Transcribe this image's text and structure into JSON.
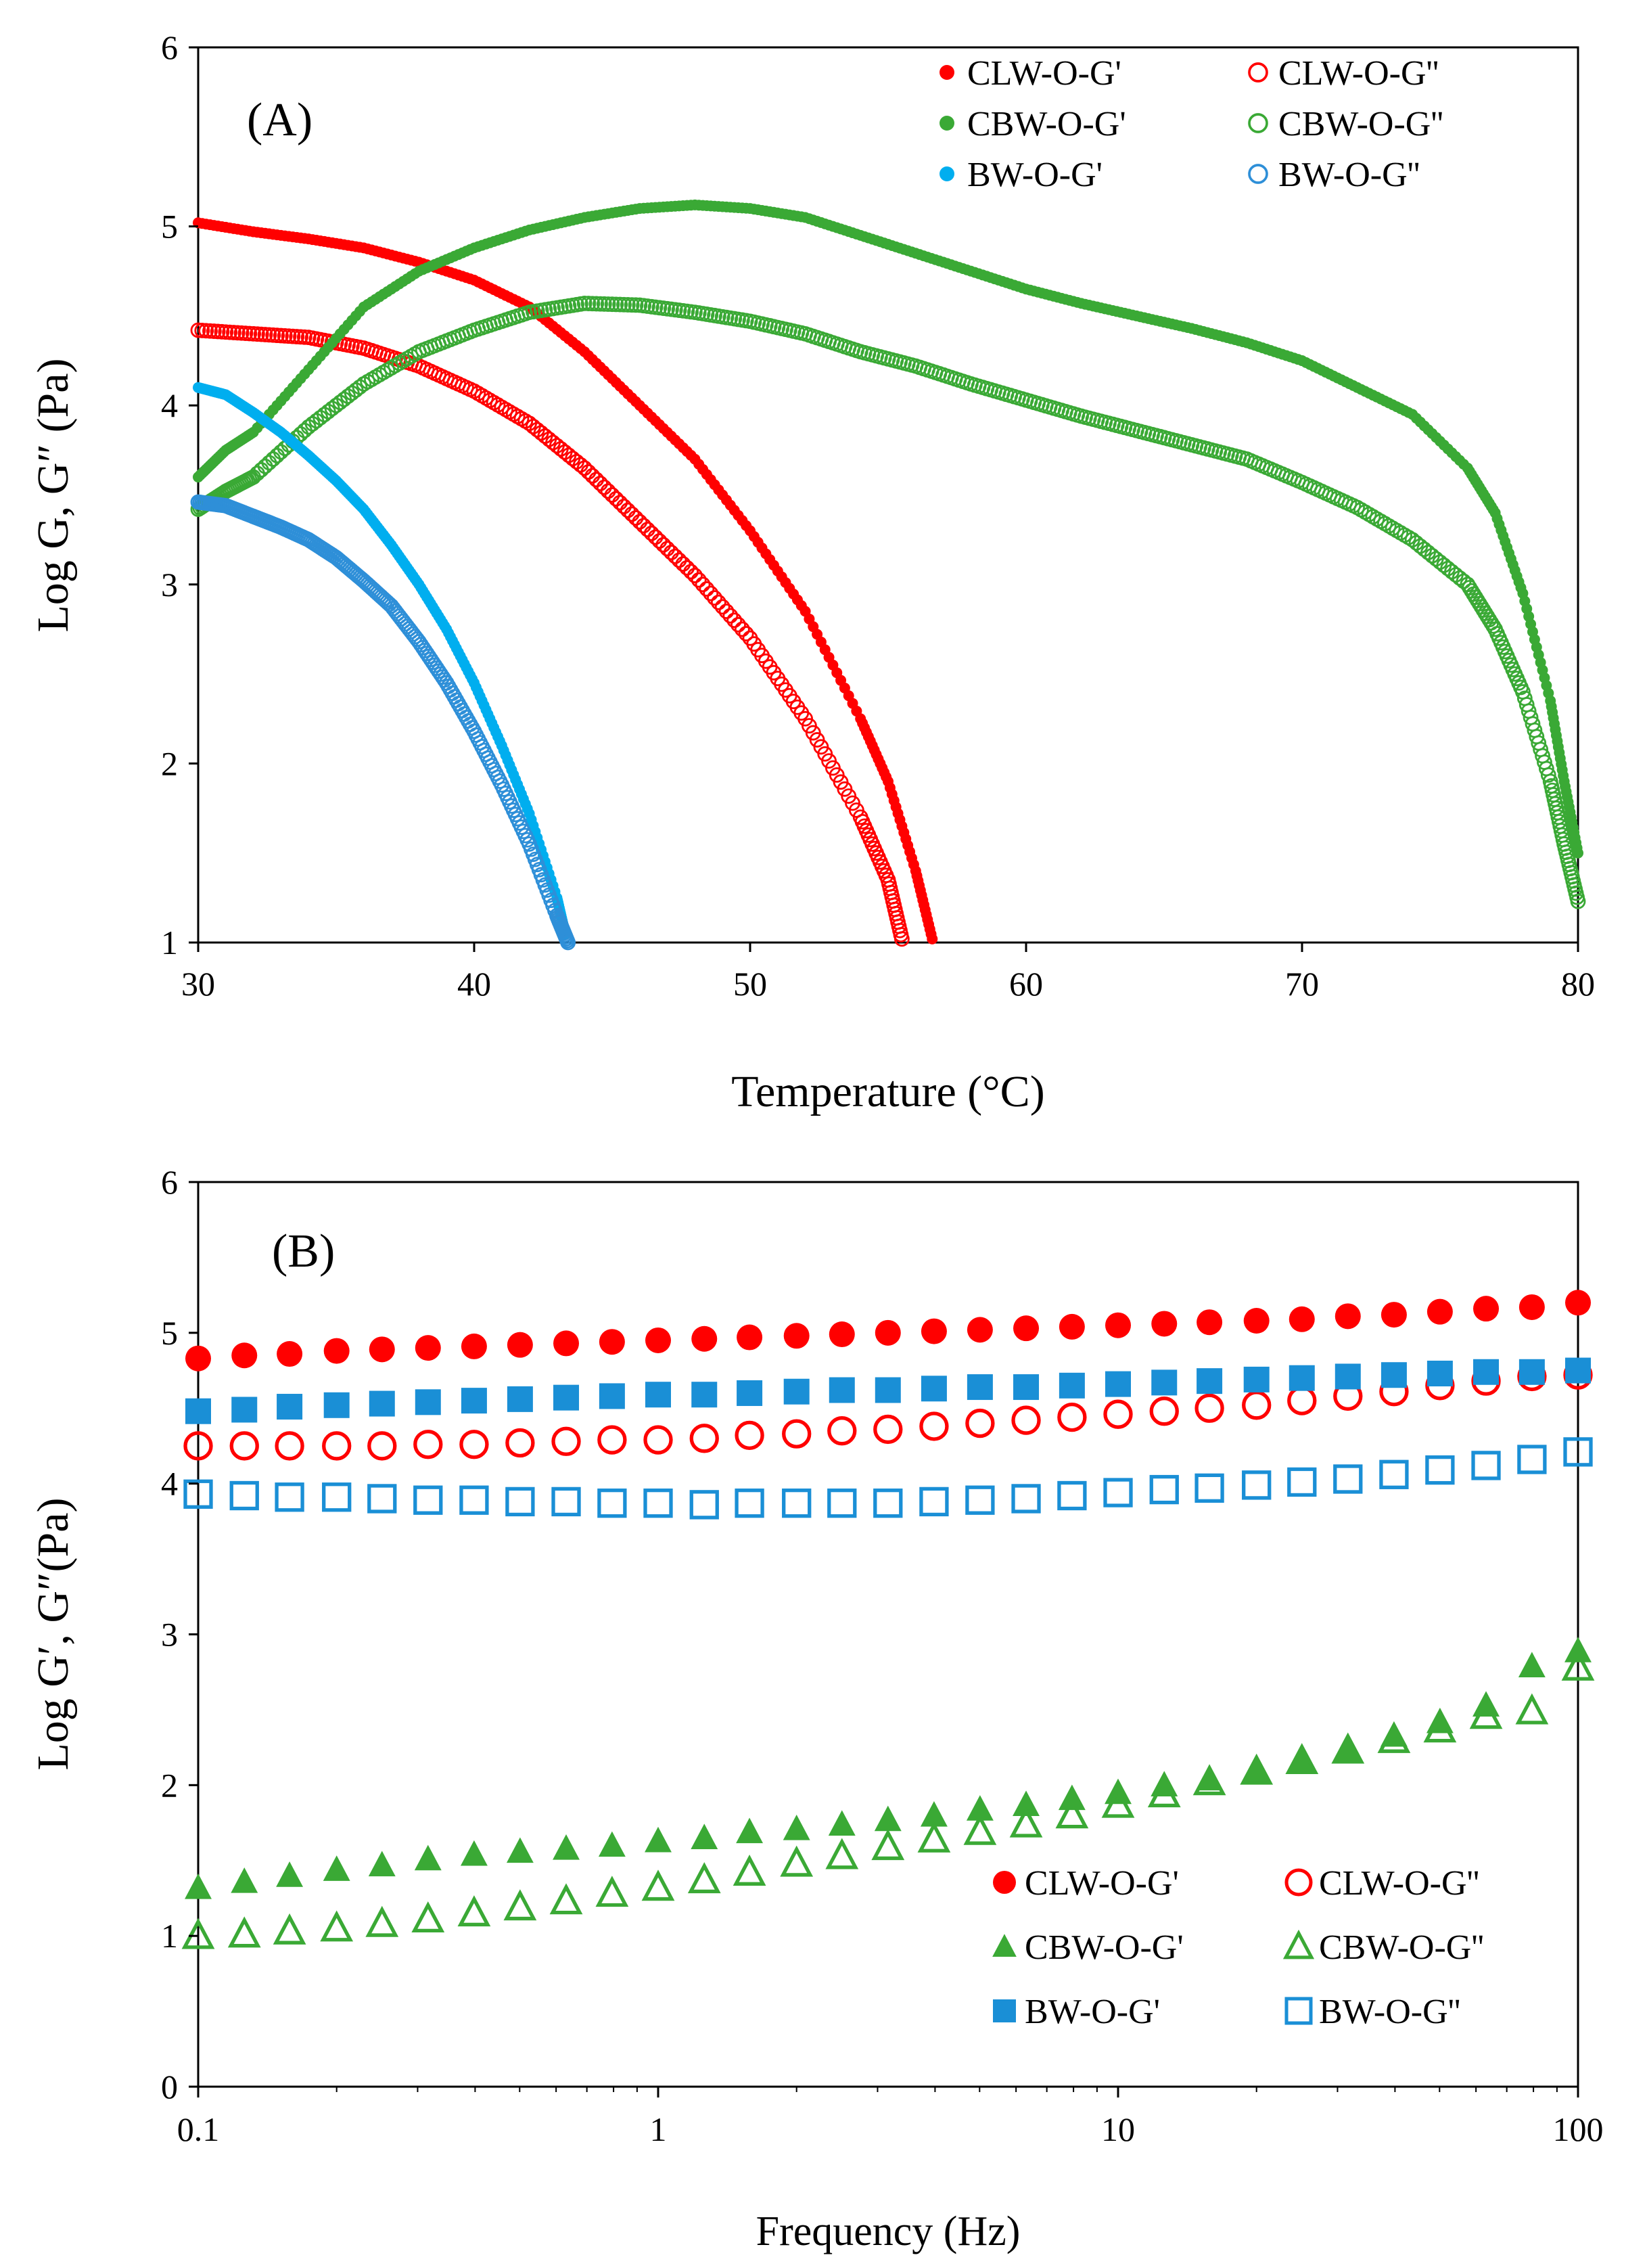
{
  "chart_data": [
    {
      "panel": "(A)",
      "type": "scatter",
      "title": "",
      "xlabel": "Temperature (°C)",
      "ylabel": "Log G, G″ (Pa)",
      "xlim": [
        30,
        80
      ],
      "ylim": [
        1,
        6
      ],
      "xticks": [
        "30",
        "40",
        "50",
        "60",
        "70",
        "80"
      ],
      "yticks": [
        "1",
        "2",
        "3",
        "4",
        "5",
        "6"
      ],
      "x_scale": "linear",
      "grid": false,
      "legend_position": "top-right",
      "series": [
        {
          "name": "CLW-O-G'",
          "color": "#ff0000",
          "marker": "circle",
          "filled": true,
          "points": [
            [
              30,
              5.02
            ],
            [
              32,
              4.97
            ],
            [
              34,
              4.93
            ],
            [
              36,
              4.88
            ],
            [
              38,
              4.8
            ],
            [
              40,
              4.7
            ],
            [
              42,
              4.55
            ],
            [
              44,
              4.3
            ],
            [
              46,
              4.0
            ],
            [
              48,
              3.7
            ],
            [
              50,
              3.3
            ],
            [
              52,
              2.85
            ],
            [
              54,
              2.25
            ],
            [
              55,
              1.9
            ],
            [
              56,
              1.4
            ],
            [
              56.6,
              1.02
            ]
          ]
        },
        {
          "name": "CLW-O-G''",
          "color": "#ff0000",
          "marker": "circle",
          "filled": false,
          "points": [
            [
              30,
              4.42
            ],
            [
              32,
              4.4
            ],
            [
              34,
              4.38
            ],
            [
              36,
              4.32
            ],
            [
              38,
              4.22
            ],
            [
              40,
              4.08
            ],
            [
              42,
              3.9
            ],
            [
              44,
              3.65
            ],
            [
              46,
              3.35
            ],
            [
              48,
              3.05
            ],
            [
              50,
              2.7
            ],
            [
              52,
              2.25
            ],
            [
              54,
              1.7
            ],
            [
              55,
              1.35
            ],
            [
              55.5,
              1.02
            ]
          ]
        },
        {
          "name": "CBW-O-G'",
          "color": "#3aa935",
          "marker": "circle",
          "filled": true,
          "points": [
            [
              30,
              3.6
            ],
            [
              31,
              3.75
            ],
            [
              32,
              3.85
            ],
            [
              34,
              4.2
            ],
            [
              36,
              4.55
            ],
            [
              38,
              4.75
            ],
            [
              40,
              4.88
            ],
            [
              42,
              4.98
            ],
            [
              44,
              5.05
            ],
            [
              46,
              5.1
            ],
            [
              48,
              5.12
            ],
            [
              50,
              5.1
            ],
            [
              52,
              5.05
            ],
            [
              54,
              4.95
            ],
            [
              56,
              4.85
            ],
            [
              58,
              4.75
            ],
            [
              60,
              4.65
            ],
            [
              62,
              4.57
            ],
            [
              64,
              4.5
            ],
            [
              66,
              4.43
            ],
            [
              68,
              4.35
            ],
            [
              70,
              4.25
            ],
            [
              72,
              4.1
            ],
            [
              74,
              3.95
            ],
            [
              76,
              3.65
            ],
            [
              77,
              3.4
            ],
            [
              78,
              2.95
            ],
            [
              79,
              2.35
            ],
            [
              79.5,
              1.9
            ],
            [
              80,
              1.5
            ]
          ]
        },
        {
          "name": "CBW-O-G''",
          "color": "#3aa935",
          "marker": "circle",
          "filled": false,
          "points": [
            [
              30,
              3.42
            ],
            [
              31,
              3.52
            ],
            [
              32,
              3.6
            ],
            [
              34,
              3.88
            ],
            [
              36,
              4.12
            ],
            [
              38,
              4.3
            ],
            [
              40,
              4.42
            ],
            [
              42,
              4.52
            ],
            [
              44,
              4.57
            ],
            [
              46,
              4.56
            ],
            [
              48,
              4.52
            ],
            [
              50,
              4.47
            ],
            [
              52,
              4.4
            ],
            [
              54,
              4.3
            ],
            [
              56,
              4.22
            ],
            [
              58,
              4.12
            ],
            [
              60,
              4.03
            ],
            [
              62,
              3.94
            ],
            [
              64,
              3.86
            ],
            [
              66,
              3.78
            ],
            [
              68,
              3.7
            ],
            [
              70,
              3.57
            ],
            [
              72,
              3.43
            ],
            [
              74,
              3.25
            ],
            [
              76,
              3.0
            ],
            [
              77,
              2.75
            ],
            [
              78,
              2.4
            ],
            [
              79,
              1.9
            ],
            [
              79.5,
              1.55
            ],
            [
              80,
              1.23
            ]
          ]
        },
        {
          "name": "BW-O-G'",
          "color": "#00aeef",
          "marker": "circle",
          "filled": true,
          "points": [
            [
              30,
              4.1
            ],
            [
              31,
              4.06
            ],
            [
              32,
              3.96
            ],
            [
              33,
              3.85
            ],
            [
              34,
              3.72
            ],
            [
              35,
              3.58
            ],
            [
              36,
              3.42
            ],
            [
              37,
              3.22
            ],
            [
              38,
              3.0
            ],
            [
              39,
              2.75
            ],
            [
              40,
              2.45
            ],
            [
              41,
              2.1
            ],
            [
              42,
              1.72
            ],
            [
              43,
              1.25
            ],
            [
              43.3,
              1.05
            ]
          ]
        },
        {
          "name": "BW-O-G''",
          "color": "#2e8fd8",
          "marker": "circle",
          "filled": false,
          "points": [
            [
              30,
              3.46
            ],
            [
              31,
              3.44
            ],
            [
              32,
              3.38
            ],
            [
              33,
              3.32
            ],
            [
              34,
              3.25
            ],
            [
              35,
              3.15
            ],
            [
              36,
              3.02
            ],
            [
              37,
              2.88
            ],
            [
              38,
              2.68
            ],
            [
              39,
              2.45
            ],
            [
              40,
              2.18
            ],
            [
              41,
              1.88
            ],
            [
              42,
              1.55
            ],
            [
              43,
              1.15
            ],
            [
              43.4,
              1.0
            ]
          ]
        }
      ]
    },
    {
      "panel": "(B)",
      "type": "scatter",
      "title": "",
      "xlabel": "Frequency  (Hz)",
      "ylabel": "Log G′, G″(Pa)",
      "xlim": [
        0.1,
        100
      ],
      "ylim": [
        0,
        6
      ],
      "xticks": [
        "0.1",
        "1",
        "10",
        "100"
      ],
      "yticks": [
        "0",
        "1",
        "2",
        "3",
        "4",
        "5",
        "6"
      ],
      "x_scale": "log",
      "grid": false,
      "legend_position": "bottom-right",
      "x": [
        0.1,
        0.126,
        0.158,
        0.2,
        0.251,
        0.316,
        0.398,
        0.501,
        0.631,
        0.794,
        1,
        1.26,
        1.58,
        2,
        2.51,
        3.16,
        3.98,
        5.01,
        6.31,
        7.94,
        10,
        12.6,
        15.8,
        20,
        25.1,
        31.6,
        39.8,
        50.1,
        63.1,
        79.4,
        100
      ],
      "series": [
        {
          "name": "CLW-O-G'",
          "color": "#ff0000",
          "marker": "circle",
          "filled": true,
          "values": [
            4.83,
            4.85,
            4.86,
            4.88,
            4.89,
            4.9,
            4.91,
            4.92,
            4.93,
            4.94,
            4.95,
            4.96,
            4.97,
            4.98,
            4.99,
            5.0,
            5.01,
            5.02,
            5.03,
            5.04,
            5.05,
            5.06,
            5.07,
            5.08,
            5.09,
            5.11,
            5.12,
            5.14,
            5.16,
            5.17,
            5.2
          ]
        },
        {
          "name": "CLW-O-G''",
          "color": "#ff0000",
          "marker": "circle",
          "filled": false,
          "values": [
            4.25,
            4.25,
            4.25,
            4.25,
            4.25,
            4.26,
            4.26,
            4.27,
            4.28,
            4.29,
            4.29,
            4.3,
            4.32,
            4.33,
            4.35,
            4.36,
            4.38,
            4.4,
            4.42,
            4.44,
            4.46,
            4.48,
            4.5,
            4.52,
            4.55,
            4.58,
            4.61,
            4.65,
            4.68,
            4.71,
            4.72
          ]
        },
        {
          "name": "CBW-O-G'",
          "color": "#3aa935",
          "marker": "triangle",
          "filled": true,
          "values": [
            1.32,
            1.36,
            1.4,
            1.44,
            1.47,
            1.51,
            1.54,
            1.56,
            1.58,
            1.6,
            1.63,
            1.65,
            1.69,
            1.71,
            1.74,
            1.77,
            1.8,
            1.84,
            1.87,
            1.91,
            1.95,
            2.0,
            2.04,
            2.1,
            2.17,
            2.24,
            2.33,
            2.42,
            2.53,
            2.79,
            2.89
          ]
        },
        {
          "name": "CBW-O-G''",
          "color": "#3aa935",
          "marker": "triangle",
          "filled": false,
          "values": [
            1.0,
            1.01,
            1.03,
            1.05,
            1.08,
            1.11,
            1.15,
            1.19,
            1.23,
            1.28,
            1.32,
            1.37,
            1.42,
            1.48,
            1.53,
            1.59,
            1.64,
            1.69,
            1.74,
            1.8,
            1.87,
            1.94,
            2.02,
            2.09,
            2.16,
            2.23,
            2.3,
            2.37,
            2.46,
            2.49,
            2.78
          ]
        },
        {
          "name": "BW-O-G'",
          "color": "#1a8fd6",
          "marker": "square",
          "filled": true,
          "values": [
            4.48,
            4.49,
            4.51,
            4.52,
            4.53,
            4.54,
            4.55,
            4.56,
            4.57,
            4.58,
            4.59,
            4.59,
            4.6,
            4.61,
            4.62,
            4.62,
            4.63,
            4.64,
            4.64,
            4.65,
            4.66,
            4.67,
            4.68,
            4.69,
            4.7,
            4.71,
            4.72,
            4.73,
            4.74,
            4.74,
            4.75
          ]
        },
        {
          "name": "BW-O-G''",
          "color": "#1a8fd6",
          "marker": "square",
          "filled": false,
          "values": [
            3.93,
            3.92,
            3.91,
            3.91,
            3.9,
            3.89,
            3.89,
            3.88,
            3.88,
            3.87,
            3.87,
            3.86,
            3.87,
            3.87,
            3.87,
            3.87,
            3.88,
            3.89,
            3.9,
            3.92,
            3.94,
            3.96,
            3.97,
            3.99,
            4.01,
            4.03,
            4.06,
            4.09,
            4.12,
            4.16,
            4.21
          ]
        }
      ]
    }
  ]
}
